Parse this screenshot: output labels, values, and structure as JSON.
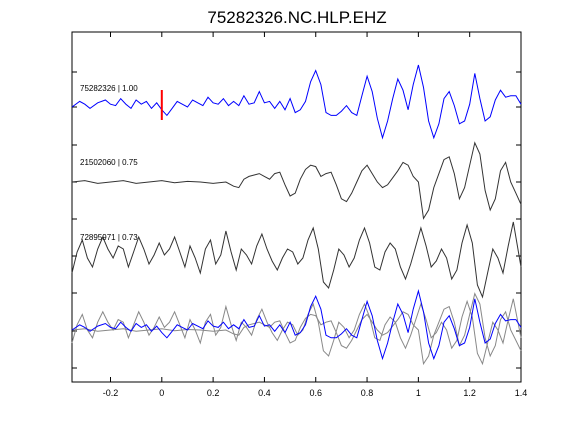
{
  "chart_data": {
    "type": "line",
    "title": "75282326.NC.HLP.EHZ",
    "xlim": [
      -0.35,
      1.4
    ],
    "xticks": [
      -0.2,
      0,
      0.2,
      0.4,
      0.6,
      0.8,
      1,
      1.2,
      1.4
    ],
    "xtick_labels": [
      "-0.2",
      "0",
      "0.2",
      "0.4",
      "0.6",
      "0.8",
      "1",
      "1.2",
      "1.4"
    ],
    "xlabel": "",
    "ylabel": "",
    "grid": false,
    "pick_time": 0,
    "traces": [
      {
        "label": "75282326 | 1.00",
        "color": "#0000ff",
        "t": [
          -0.35,
          -0.32,
          -0.3,
          -0.28,
          -0.25,
          -0.22,
          -0.2,
          -0.18,
          -0.16,
          -0.14,
          -0.12,
          -0.1,
          -0.08,
          -0.06,
          -0.04,
          -0.02,
          0,
          0.02,
          0.04,
          0.06,
          0.08,
          0.1,
          0.12,
          0.14,
          0.16,
          0.18,
          0.2,
          0.22,
          0.24,
          0.26,
          0.28,
          0.3,
          0.32,
          0.34,
          0.36,
          0.38,
          0.4,
          0.42,
          0.44,
          0.46,
          0.48,
          0.5,
          0.52,
          0.54,
          0.56,
          0.58,
          0.6,
          0.62,
          0.64,
          0.66,
          0.68,
          0.7,
          0.72,
          0.74,
          0.76,
          0.78,
          0.8,
          0.82,
          0.84,
          0.86,
          0.88,
          0.9,
          0.92,
          0.94,
          0.96,
          0.98,
          1.0,
          1.02,
          1.04,
          1.06,
          1.08,
          1.1,
          1.12,
          1.14,
          1.16,
          1.18,
          1.2,
          1.22,
          1.24,
          1.26,
          1.28,
          1.3,
          1.32,
          1.34,
          1.36,
          1.38,
          1.4
        ],
        "v": [
          0.0,
          0.2,
          0.1,
          -0.05,
          0.15,
          0.25,
          0.1,
          0.05,
          0.3,
          0.1,
          -0.05,
          0.25,
          0.1,
          0.2,
          -0.05,
          0.15,
          -0.1,
          -0.3,
          -0.05,
          0.2,
          0.1,
          0.0,
          0.25,
          0.15,
          0.05,
          0.35,
          0.15,
          0.1,
          0.3,
          0.05,
          0.2,
          0.05,
          0.4,
          0.1,
          0.15,
          0.55,
          0.15,
          0.2,
          -0.05,
          0.2,
          -0.1,
          0.3,
          -0.2,
          -0.1,
          0.2,
          0.9,
          1.3,
          0.8,
          -0.2,
          -0.3,
          -0.3,
          -0.15,
          0.05,
          -0.2,
          -0.3,
          0.4,
          1.1,
          0.55,
          -0.4,
          -1.1,
          -0.5,
          0.3,
          1.0,
          0.6,
          -0.1,
          0.8,
          1.5,
          0.7,
          -0.5,
          -1.1,
          -0.6,
          0.3,
          0.55,
          0.05,
          -0.6,
          -0.5,
          0.1,
          1.2,
          0.3,
          -0.5,
          -0.35,
          0.25,
          0.6,
          0.35,
          0.4,
          0.4,
          0.1
        ]
      },
      {
        "label": "21502060 | 0.75",
        "color": "#333333",
        "t": [
          -0.35,
          -0.3,
          -0.25,
          -0.2,
          -0.15,
          -0.1,
          -0.05,
          0,
          0.05,
          0.1,
          0.15,
          0.2,
          0.25,
          0.28,
          0.3,
          0.32,
          0.34,
          0.36,
          0.38,
          0.4,
          0.42,
          0.44,
          0.46,
          0.48,
          0.5,
          0.52,
          0.54,
          0.56,
          0.58,
          0.6,
          0.62,
          0.64,
          0.66,
          0.68,
          0.7,
          0.72,
          0.74,
          0.76,
          0.78,
          0.8,
          0.82,
          0.84,
          0.86,
          0.88,
          0.9,
          0.92,
          0.94,
          0.96,
          0.98,
          1.0,
          1.02,
          1.04,
          1.06,
          1.08,
          1.1,
          1.12,
          1.14,
          1.16,
          1.18,
          1.2,
          1.22,
          1.24,
          1.26,
          1.28,
          1.3,
          1.32,
          1.34,
          1.36,
          1.38,
          1.4
        ],
        "v": [
          0.0,
          0.05,
          -0.05,
          0.0,
          0.05,
          -0.05,
          0.0,
          0.05,
          -0.03,
          0.02,
          0.0,
          -0.05,
          0.0,
          -0.15,
          -0.2,
          0.1,
          0.2,
          0.25,
          0.3,
          0.2,
          0.1,
          0.3,
          0.35,
          -0.1,
          -0.5,
          -0.4,
          0.1,
          0.45,
          0.6,
          0.55,
          0.2,
          0.3,
          0.35,
          -0.1,
          -0.6,
          -0.7,
          -0.4,
          0.0,
          0.4,
          0.6,
          0.3,
          0.0,
          -0.2,
          -0.1,
          0.15,
          0.4,
          0.7,
          0.6,
          0.2,
          0.0,
          -1.3,
          -1.0,
          -0.2,
          0.3,
          0.8,
          0.9,
          0.3,
          -0.6,
          -0.2,
          0.6,
          1.4,
          1.0,
          -0.3,
          -1.0,
          -0.6,
          0.4,
          0.7,
          0.0,
          -0.4,
          -0.8
        ]
      },
      {
        "label": "72895971 | 0.73",
        "color": "#333333",
        "t": [
          -0.35,
          -0.33,
          -0.31,
          -0.29,
          -0.27,
          -0.25,
          -0.23,
          -0.21,
          -0.19,
          -0.17,
          -0.15,
          -0.13,
          -0.11,
          -0.09,
          -0.07,
          -0.05,
          -0.03,
          -0.01,
          0.01,
          0.03,
          0.05,
          0.07,
          0.09,
          0.11,
          0.13,
          0.15,
          0.17,
          0.19,
          0.21,
          0.23,
          0.25,
          0.27,
          0.29,
          0.31,
          0.33,
          0.35,
          0.37,
          0.39,
          0.41,
          0.43,
          0.45,
          0.47,
          0.49,
          0.51,
          0.53,
          0.55,
          0.57,
          0.59,
          0.61,
          0.63,
          0.65,
          0.67,
          0.69,
          0.71,
          0.73,
          0.75,
          0.77,
          0.79,
          0.81,
          0.83,
          0.85,
          0.87,
          0.89,
          0.91,
          0.93,
          0.95,
          0.97,
          0.99,
          1.01,
          1.03,
          1.05,
          1.07,
          1.09,
          1.11,
          1.13,
          1.15,
          1.17,
          1.19,
          1.21,
          1.23,
          1.25,
          1.27,
          1.29,
          1.31,
          1.33,
          1.35,
          1.37,
          1.4
        ],
        "v": [
          -0.5,
          0.2,
          0.6,
          0.0,
          -0.3,
          0.3,
          0.7,
          0.3,
          0.0,
          0.4,
          0.3,
          -0.3,
          0.2,
          0.7,
          0.3,
          -0.2,
          0.1,
          0.5,
          0.1,
          0.3,
          0.7,
          0.2,
          -0.3,
          0.4,
          0.0,
          -0.5,
          0.3,
          0.6,
          -0.2,
          0.1,
          0.9,
          0.2,
          -0.4,
          0.3,
          0.1,
          -0.2,
          0.4,
          0.8,
          0.3,
          -0.1,
          -0.4,
          0.0,
          0.3,
          0.2,
          -0.2,
          0.0,
          0.6,
          1.0,
          0.3,
          -0.8,
          -1.0,
          -0.4,
          0.3,
          0.1,
          -0.3,
          0.0,
          0.6,
          1.0,
          0.5,
          -0.3,
          -0.4,
          0.2,
          0.5,
          0.3,
          -0.3,
          -0.7,
          -0.2,
          0.4,
          1.0,
          0.4,
          -0.3,
          -0.1,
          0.3,
          0.0,
          -0.7,
          -0.4,
          0.5,
          1.1,
          0.5,
          -0.9,
          -1.3,
          -0.5,
          0.3,
          0.0,
          -0.5,
          0.4,
          1.2,
          -0.3
        ]
      }
    ],
    "overlay": {
      "colors": [
        "#888888",
        "#888888",
        "#0000ff"
      ]
    }
  }
}
